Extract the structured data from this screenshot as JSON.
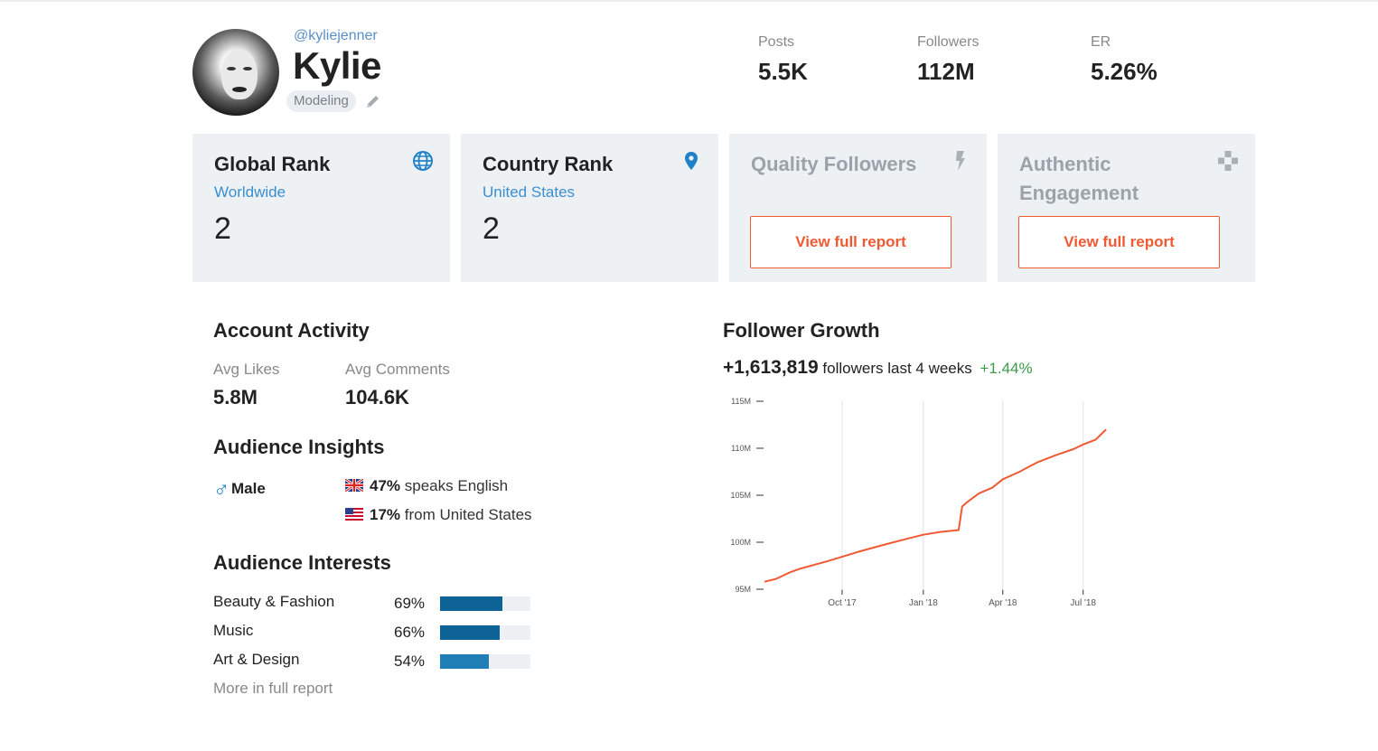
{
  "profile": {
    "handle": "@kyliejenner",
    "name": "Kylie",
    "category": "Modeling"
  },
  "stats": [
    {
      "label": "Posts",
      "value": "5.5K"
    },
    {
      "label": "Followers",
      "value": "112M"
    },
    {
      "label": "ER",
      "value": "5.26%"
    }
  ],
  "cards": {
    "global": {
      "title": "Global Rank",
      "sub": "Worldwide",
      "value": "2",
      "icon": "globe-icon"
    },
    "country": {
      "title": "Country Rank",
      "sub": "United States",
      "value": "2",
      "icon": "location-pin-icon"
    },
    "quality": {
      "title": "Quality Followers",
      "button": "View full report",
      "icon": "lightning-icon"
    },
    "authentic": {
      "title": "Authentic Engagement",
      "button": "View full report",
      "icon": "puzzle-icon"
    }
  },
  "activity": {
    "title": "Account Activity",
    "likes_label": "Avg Likes",
    "likes_value": "5.8M",
    "comments_label": "Avg Comments",
    "comments_value": "104.6K"
  },
  "insights": {
    "title": "Audience Insights",
    "gender": "Male",
    "language_pct": "47%",
    "language_text": "speaks English",
    "country_pct": "17%",
    "country_text": "from United States"
  },
  "interests": {
    "title": "Audience Interests",
    "items": [
      {
        "label": "Beauty & Fashion",
        "pct_text": "69%",
        "value": 69
      },
      {
        "label": "Music",
        "pct_text": "66%",
        "value": 66
      },
      {
        "label": "Art & Design",
        "pct_text": "54%",
        "value": 54
      }
    ],
    "more": "More in full report"
  },
  "growth": {
    "title": "Follower Growth",
    "delta": "+1,613,819",
    "text": "followers last 4 weeks",
    "pct": "+1.44%"
  },
  "colors": {
    "accent": "#ef5a33",
    "link": "#3a8fd0",
    "bar": "#0e6396",
    "positive": "#3c9a4b",
    "card_bg": "#eef1f4"
  },
  "chart_data": {
    "type": "line",
    "title": "",
    "xlabel": "",
    "ylabel": "",
    "ylim": [
      95,
      115
    ],
    "y_unit": "M",
    "y_ticks": [
      "95M",
      "100M",
      "105M",
      "110M",
      "115M"
    ],
    "x_tick_labels": [
      "Oct '17",
      "Jan '18",
      "Apr '18",
      "Jul '18"
    ],
    "x_ticks": [
      "2017-10-01",
      "2018-01-01",
      "2018-04-01",
      "2018-07-01"
    ],
    "xlim": [
      "2017-07-04",
      "2018-07-31"
    ],
    "grid": "vertical",
    "series": [
      {
        "color": "#ef5a33",
        "x": [
          "2017-07-05",
          "2017-07-18",
          "2017-08-03",
          "2017-08-15",
          "2017-09-15",
          "2017-10-20",
          "2017-11-20",
          "2017-12-15",
          "2018-01-01",
          "2018-01-20",
          "2018-02-10",
          "2018-02-14",
          "2018-02-20",
          "2018-03-05",
          "2018-03-20",
          "2018-04-01",
          "2018-04-20",
          "2018-05-10",
          "2018-06-01",
          "2018-06-20",
          "2018-07-01",
          "2018-07-15",
          "2018-07-27"
        ],
        "values": [
          95.8,
          96.1,
          96.8,
          97.2,
          98.0,
          99.0,
          99.8,
          100.4,
          100.8,
          101.1,
          101.3,
          103.8,
          104.3,
          105.2,
          105.8,
          106.7,
          107.5,
          108.5,
          109.3,
          109.9,
          110.4,
          110.9,
          112.0
        ]
      }
    ]
  }
}
